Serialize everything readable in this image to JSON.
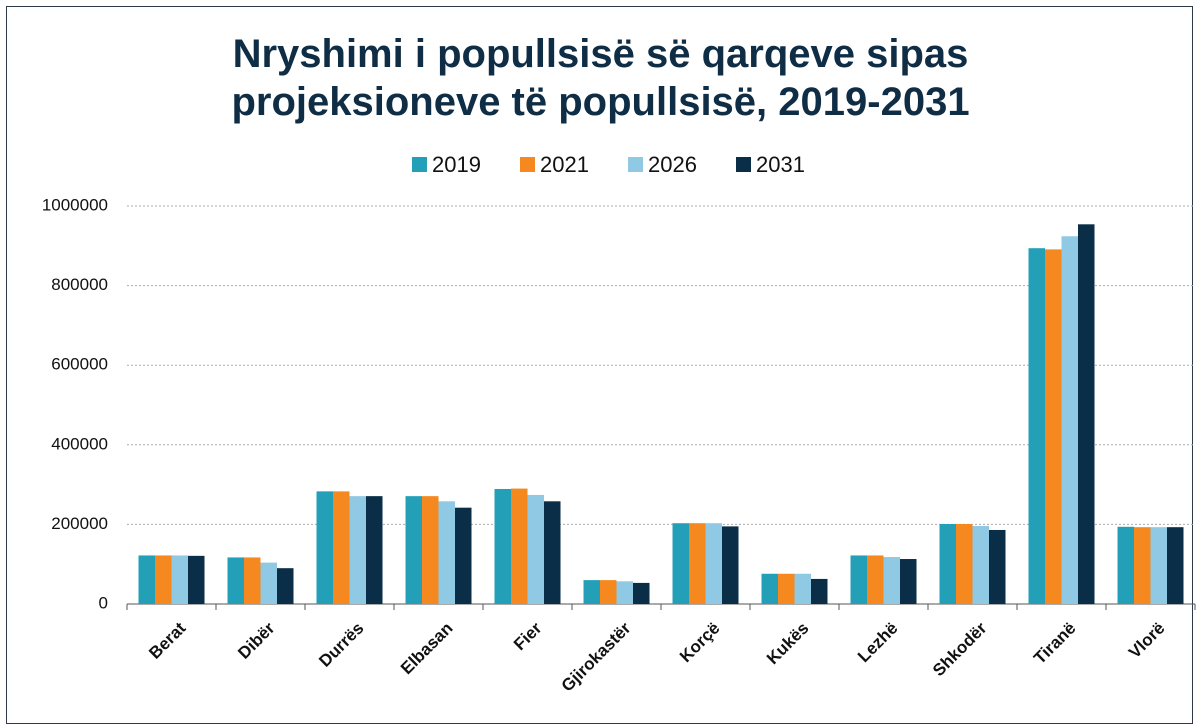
{
  "chart_data": {
    "type": "bar",
    "title": "Nryshimi i popullsisë së qarqeve sipas\nprojeksioneve të popullsisë, 2019-2031",
    "categories": [
      "Berat",
      "Dibër",
      "Durrës",
      "Elbasan",
      "Fier",
      "Gjirokastër",
      "Korçë",
      "Kukës",
      "Lezhë",
      "Shkodër",
      "Tiranë",
      "Vlorë"
    ],
    "series": [
      {
        "name": "2019",
        "color": "#23a0b8",
        "values": [
          122000,
          117000,
          283000,
          271000,
          289000,
          60000,
          203000,
          76000,
          122000,
          201000,
          894000,
          194000
        ]
      },
      {
        "name": "2021",
        "color": "#f5891f",
        "values": [
          122000,
          117000,
          283000,
          271000,
          290000,
          60000,
          203000,
          76000,
          122000,
          201000,
          891000,
          193000
        ]
      },
      {
        "name": "2026",
        "color": "#90c9e4",
        "values": [
          122000,
          104000,
          271000,
          258000,
          274000,
          57000,
          203000,
          76000,
          118000,
          196000,
          924000,
          193000
        ]
      },
      {
        "name": "2031",
        "color": "#0a2e48",
        "values": [
          121000,
          90000,
          271000,
          242000,
          258000,
          53000,
          195000,
          63000,
          113000,
          186000,
          954000,
          193000
        ]
      }
    ],
    "ylim": [
      0,
      1000000
    ],
    "yticks": [
      0,
      200000,
      400000,
      600000,
      800000,
      1000000
    ],
    "grid": true,
    "legend": "top"
  }
}
